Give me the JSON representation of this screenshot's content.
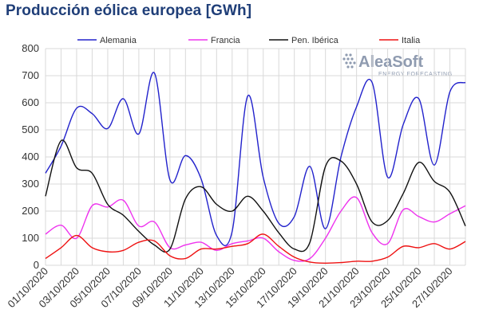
{
  "chart_data": {
    "type": "line",
    "title": "Producción eólica europea [GWh]",
    "xlabel": "",
    "ylabel": "",
    "ylim": [
      0,
      800
    ],
    "yticks": [
      0,
      100,
      200,
      300,
      400,
      500,
      600,
      700,
      800
    ],
    "grid": true,
    "legend_position": "top",
    "x": [
      "01/10/2020",
      "02/10/2020",
      "03/10/2020",
      "04/10/2020",
      "05/10/2020",
      "06/10/2020",
      "07/10/2020",
      "08/10/2020",
      "09/10/2020",
      "10/10/2020",
      "11/10/2020",
      "12/10/2020",
      "13/10/2020",
      "14/10/2020",
      "15/10/2020",
      "16/10/2020",
      "17/10/2020",
      "18/10/2020",
      "19/10/2020",
      "20/10/2020",
      "21/10/2020",
      "22/10/2020",
      "23/10/2020",
      "24/10/2020",
      "25/10/2020",
      "26/10/2020",
      "27/10/2020",
      "28/10/2020"
    ],
    "xtick_labels": [
      "01/10/2020",
      "03/10/2020",
      "05/10/2020",
      "07/10/2020",
      "09/10/2020",
      "11/10/2020",
      "13/10/2020",
      "15/10/2020",
      "17/10/2020",
      "19/10/2020",
      "21/10/2020",
      "23/10/2020",
      "25/10/2020",
      "27/10/2020"
    ],
    "series": [
      {
        "name": "Alemania",
        "color": "#2222cc",
        "values": [
          340,
          440,
          580,
          560,
          505,
          615,
          485,
          710,
          315,
          405,
          320,
          110,
          125,
          625,
          325,
          155,
          180,
          365,
          135,
          400,
          585,
          675,
          325,
          520,
          615,
          370,
          640,
          675
        ]
      },
      {
        "name": "Francia",
        "color": "#ee33ee",
        "values": [
          115,
          148,
          100,
          220,
          215,
          240,
          145,
          160,
          65,
          75,
          85,
          55,
          80,
          90,
          100,
          50,
          18,
          25,
          100,
          200,
          250,
          120,
          80,
          205,
          180,
          160,
          190,
          220
        ]
      },
      {
        "name": "Pen. Ibérica",
        "color": "#111111",
        "values": [
          255,
          460,
          360,
          340,
          225,
          185,
          125,
          75,
          60,
          245,
          290,
          225,
          200,
          255,
          200,
          120,
          60,
          85,
          365,
          385,
          300,
          160,
          165,
          265,
          380,
          310,
          270,
          145
        ]
      },
      {
        "name": "Italia",
        "color": "#ee1111",
        "values": [
          25,
          65,
          110,
          65,
          50,
          55,
          85,
          90,
          35,
          25,
          60,
          60,
          70,
          80,
          115,
          70,
          30,
          12,
          8,
          10,
          15,
          15,
          30,
          70,
          65,
          80,
          60,
          88
        ]
      }
    ]
  },
  "logo": {
    "name": "AleaSoft",
    "tagline": "ENERGY FORECASTING"
  }
}
